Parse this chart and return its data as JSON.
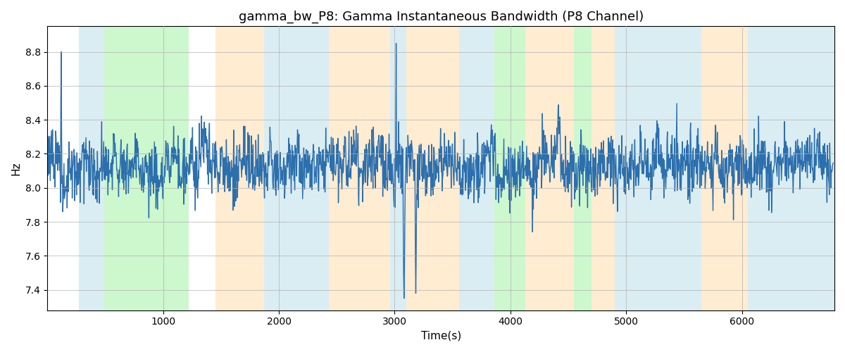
{
  "title": "gamma_bw_P8: Gamma Instantaneous Bandwidth (P8 Channel)",
  "xlabel": "Time(s)",
  "ylabel": "Hz",
  "ylim": [
    7.28,
    8.95
  ],
  "xlim": [
    0,
    6800
  ],
  "bg_bands": [
    {
      "xmin": 270,
      "xmax": 490,
      "color": "#ADD8E6",
      "alpha": 0.45
    },
    {
      "xmin": 490,
      "xmax": 1220,
      "color": "#90EE90",
      "alpha": 0.45
    },
    {
      "xmin": 1450,
      "xmax": 1870,
      "color": "#FFD59A",
      "alpha": 0.45
    },
    {
      "xmin": 1870,
      "xmax": 2430,
      "color": "#ADD8E6",
      "alpha": 0.45
    },
    {
      "xmin": 2430,
      "xmax": 2960,
      "color": "#FFD59A",
      "alpha": 0.45
    },
    {
      "xmin": 2960,
      "xmax": 3100,
      "color": "#ADD8E6",
      "alpha": 0.45
    },
    {
      "xmin": 3100,
      "xmax": 3560,
      "color": "#FFD59A",
      "alpha": 0.45
    },
    {
      "xmin": 3560,
      "xmax": 3860,
      "color": "#ADD8E6",
      "alpha": 0.45
    },
    {
      "xmin": 3860,
      "xmax": 4130,
      "color": "#90EE90",
      "alpha": 0.45
    },
    {
      "xmin": 4130,
      "xmax": 4550,
      "color": "#FFD59A",
      "alpha": 0.45
    },
    {
      "xmin": 4550,
      "xmax": 4700,
      "color": "#90EE90",
      "alpha": 0.45
    },
    {
      "xmin": 4700,
      "xmax": 4900,
      "color": "#FFD59A",
      "alpha": 0.45
    },
    {
      "xmin": 4900,
      "xmax": 5650,
      "color": "#ADD8E6",
      "alpha": 0.45
    },
    {
      "xmin": 5650,
      "xmax": 6050,
      "color": "#FFD59A",
      "alpha": 0.45
    },
    {
      "xmin": 6050,
      "xmax": 6800,
      "color": "#ADD8E6",
      "alpha": 0.45
    }
  ],
  "line_color": "#2c6fad",
  "line_width": 1.0,
  "grid_color": "#b0b0b0",
  "grid_alpha": 0.7,
  "seed": 12345,
  "n_points": 2000,
  "x_start": 0,
  "x_end": 6790,
  "base_mean": 8.13,
  "mean_reversion": 0.12,
  "step_std": 0.025,
  "noise_std": 0.09,
  "xticks": [
    1000,
    2000,
    3000,
    4000,
    5000,
    6000
  ],
  "yticks": [
    7.4,
    7.6,
    7.8,
    8.0,
    8.2,
    8.4,
    8.6,
    8.8
  ]
}
